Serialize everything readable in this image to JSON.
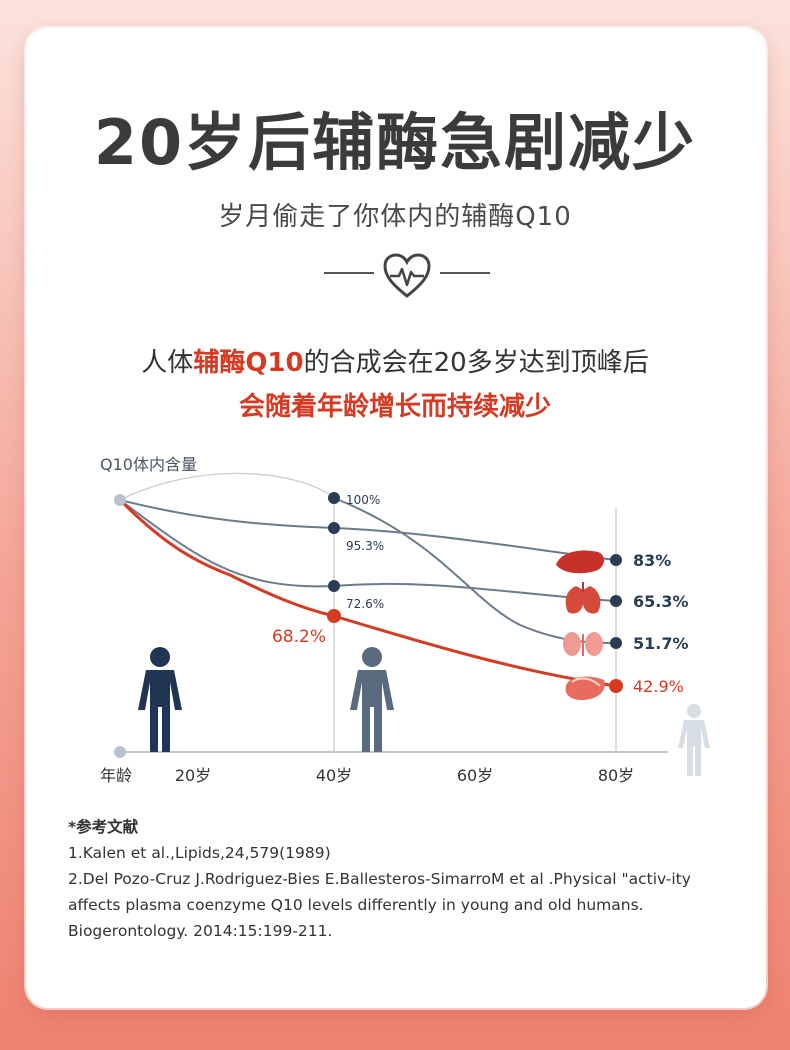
{
  "title": "20岁后辅酶急剧减少",
  "subtitle": "岁月偷走了你体内的辅酶Q10",
  "intro": {
    "prefix": "人体",
    "highlight": "辅酶Q10",
    "suffix": "的合成会在20多岁达到顶峰后",
    "line2": "会随着年龄增长而持续减少"
  },
  "chart_data": {
    "type": "line",
    "ylabel": "Q10体内含量",
    "xlabel": "年龄",
    "categories": [
      "20岁",
      "40岁",
      "60岁",
      "80岁"
    ],
    "x": [
      20,
      40,
      60,
      80
    ],
    "series": [
      {
        "name": "",
        "color": "#2a3d55",
        "x": [
          20,
          40,
          80
        ],
        "values": [
          null,
          100,
          51.7
        ],
        "labels": [
          "",
          "100%",
          "51.7%"
        ]
      },
      {
        "name": "",
        "color": "#2a3d55",
        "x": [
          20,
          40,
          80
        ],
        "values": [
          null,
          95.3,
          83
        ],
        "labels": [
          "",
          "95.3%",
          "83%"
        ]
      },
      {
        "name": "",
        "color": "#2a3d55",
        "x": [
          20,
          40,
          80
        ],
        "values": [
          null,
          72.6,
          65.3
        ],
        "labels": [
          "",
          "72.6%",
          "65.3%"
        ]
      },
      {
        "name": "",
        "color": "#d63a22",
        "x": [
          20,
          40,
          80
        ],
        "values": [
          null,
          68.2,
          42.9
        ],
        "labels": [
          "",
          "68.2%",
          "42.9%"
        ]
      }
    ]
  },
  "references": {
    "title": "*参考文献",
    "items": [
      "1.Kalen et al.,Lipids,24,579(1989)",
      "2.Del Pozo-Cruz J.Rodriguez-Bies E.Ballesteros-SimarroM et al .Physical \"activ-ity affects plasma coenzyme Q10 levels differently in young and old humans. Biogerontology. 2014:15:199-211."
    ]
  },
  "colors": {
    "accent": "#d63a22",
    "navy": "#2a3d55",
    "grid": "#a9b3c0"
  }
}
